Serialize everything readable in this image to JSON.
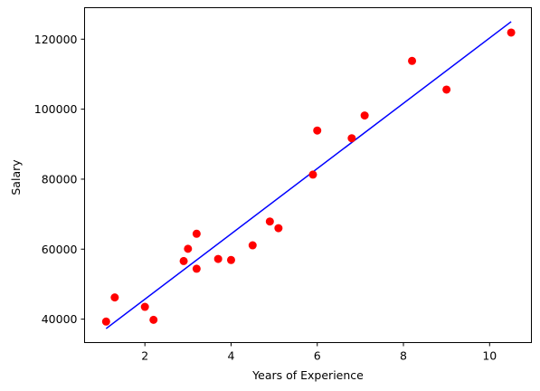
{
  "chart_data": {
    "type": "scatter",
    "xlabel": "Years of Experience",
    "ylabel": "Salary",
    "xlim": [
      0.6,
      10.97
    ],
    "ylim": [
      33300,
      129000
    ],
    "xticks": [
      2,
      4,
      6,
      8,
      10
    ],
    "xtick_labels": [
      "2",
      "4",
      "6",
      "8",
      "10"
    ],
    "yticks": [
      40000,
      60000,
      80000,
      100000,
      120000
    ],
    "ytick_labels": [
      "40000",
      "60000",
      "80000",
      "100000",
      "120000"
    ],
    "grid": false,
    "series": [
      {
        "kind": "scatter",
        "color": "#ff0000",
        "points": [
          [
            1.1,
            39300
          ],
          [
            1.3,
            46200
          ],
          [
            2.0,
            43500
          ],
          [
            2.2,
            39800
          ],
          [
            2.9,
            56600
          ],
          [
            3.0,
            60100
          ],
          [
            3.2,
            54400
          ],
          [
            3.2,
            64400
          ],
          [
            3.7,
            57200
          ],
          [
            4.0,
            56900
          ],
          [
            4.5,
            61100
          ],
          [
            4.9,
            67900
          ],
          [
            5.1,
            66000
          ],
          [
            5.9,
            81300
          ],
          [
            6.0,
            93900
          ],
          [
            6.8,
            91700
          ],
          [
            7.1,
            98200
          ],
          [
            8.2,
            113800
          ],
          [
            9.0,
            105600
          ],
          [
            10.5,
            121900
          ]
        ]
      },
      {
        "kind": "line",
        "color": "#0000ff",
        "points": [
          [
            1.1,
            37300
          ],
          [
            10.5,
            125000
          ]
        ]
      }
    ]
  }
}
